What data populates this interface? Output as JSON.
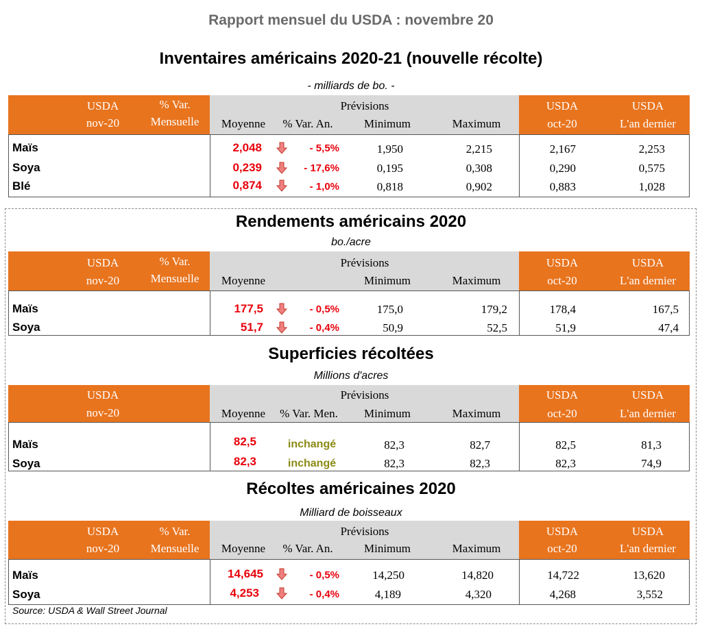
{
  "main_title": "Rapport mensuel du USDA : novembre 20",
  "colors": {
    "orange": "#E8741E",
    "gray": "#D9D9D9",
    "red_value": "#E8000B",
    "olive_text": "#8A8A14",
    "arrow_fill": "#F08080",
    "arrow_stroke": "#C0392B"
  },
  "icons": {
    "down_arrow": "down-arrow-icon"
  },
  "sections": [
    {
      "title": "Inventaires américains 2020-21 (nouvelle récolte)",
      "subtitle": "- milliards de bo. -",
      "headers": {
        "usda": "USDA",
        "nov": "nov-20",
        "pct_var": "% Var.",
        "mensuelle": "Mensuelle",
        "previsions": "Prévisions",
        "moyenne": "Moyenne",
        "var_col": "% Var. An.",
        "minimum": "Minimum",
        "maximum": "Maximum",
        "oct": "oct-20",
        "an_dernier": "L'an dernier"
      },
      "rows": [
        {
          "label": "Maïs",
          "moyenne": "2,048",
          "var": "- 5,5%",
          "minimum": "1,950",
          "maximum": "2,215",
          "oct": "2,167",
          "last_year": "2,253"
        },
        {
          "label": "Soya",
          "moyenne": "0,239",
          "var": "- 17,6%",
          "minimum": "0,195",
          "maximum": "0,308",
          "oct": "0,290",
          "last_year": "0,575"
        },
        {
          "label": "Blé",
          "moyenne": "0,874",
          "var": "- 1,0%",
          "minimum": "0,818",
          "maximum": "0,902",
          "oct": "0,883",
          "last_year": "1,028"
        }
      ]
    },
    {
      "title": "Rendements américains 2020",
      "subtitle": "bo./acre",
      "headers": {
        "usda": "USDA",
        "nov": "nov-20",
        "pct_var": "% Var.",
        "mensuelle": "Mensuelle",
        "previsions": "Prévisions",
        "moyenne": "Moyenne",
        "minimum": "Minimum",
        "maximum": "Maximum",
        "oct": "oct-20",
        "an_dernier": "L'an dernier"
      },
      "rows": [
        {
          "label": "Maïs",
          "moyenne": "177,5",
          "var": "- 0,5%",
          "minimum": "175,0",
          "maximum": "179,2",
          "oct": "178,4",
          "last_year": "167,5"
        },
        {
          "label": "Soya",
          "moyenne": "51,7",
          "var": "- 0,4%",
          "minimum": "50,9",
          "maximum": "52,5",
          "oct": "51,9",
          "last_year": "47,4"
        }
      ]
    },
    {
      "title": "Superficies récoltées",
      "subtitle": "Millions d'acres",
      "headers": {
        "usda": "USDA",
        "nov": "nov-20",
        "previsions": "Prévisions",
        "moyenne": "Moyenne",
        "var_col": "% Var. Men.",
        "minimum": "Minimum",
        "maximum": "Maximum",
        "oct": "oct-20",
        "an_dernier": "L'an dernier"
      },
      "rows": [
        {
          "label": "Maïs",
          "moyenne": "82,5",
          "var": "inchangé",
          "minimum": "82,3",
          "maximum": "82,7",
          "oct": "82,5",
          "last_year": "81,3"
        },
        {
          "label": "Soya",
          "moyenne": "82,3",
          "var": "inchangé",
          "minimum": "82,3",
          "maximum": "82,3",
          "oct": "82,3",
          "last_year": "74,9"
        }
      ]
    },
    {
      "title": "Récoltes américaines 2020",
      "subtitle": "Milliard de boisseaux",
      "headers": {
        "usda": "USDA",
        "nov": "nov-20",
        "pct_var": "% Var.",
        "mensuelle": "Mensuelle",
        "previsions": "Prévisions",
        "moyenne": "Moyenne",
        "var_col": "% Var. An.",
        "minimum": "Minimum",
        "maximum": "Maximum",
        "oct": "oct-20",
        "an_dernier": "L'an dernier"
      },
      "rows": [
        {
          "label": "Maïs",
          "moyenne": "14,645",
          "var": "- 0,5%",
          "minimum": "14,250",
          "maximum": "14,820",
          "oct": "14,722",
          "last_year": "13,620"
        },
        {
          "label": "Soya",
          "moyenne": "4,253",
          "var": "- 0,4%",
          "minimum": "4,189",
          "maximum": "4,320",
          "oct": "4,268",
          "last_year": "3,552"
        }
      ]
    }
  ],
  "source": "Source: USDA & Wall Street Journal"
}
